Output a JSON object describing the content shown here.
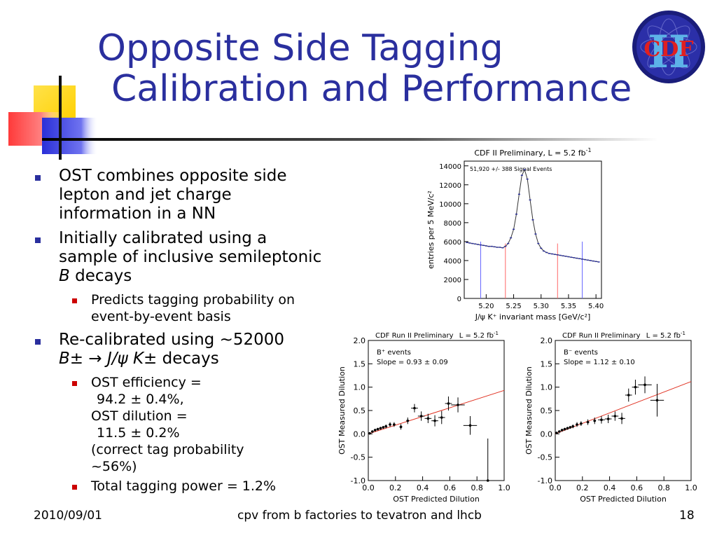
{
  "title": {
    "line1": "Opposite Side Tagging",
    "line2": "Calibration and Performance"
  },
  "logo": {
    "text": "CDF",
    "roman": "II"
  },
  "bullets": {
    "b1": "OST combines opposite side lepton and jet charge information in a NN",
    "b2_pre": "Initially calibrated using a sample of inclusive semileptonic ",
    "b2_B": "B",
    "b2_post": " decays",
    "b2_sub1": "Predicts tagging probability on event-by-event basis",
    "b3_pre": "Re-calibrated using ~52000",
    "b3_formula": "B± → J/ψ K±",
    "b3_post": " decays",
    "b3_sub1_l1": "OST efficiency =",
    "b3_sub1_l2": "94.2 ± 0.4%,",
    "b3_sub1_l3": "OST dilution =",
    "b3_sub1_l4": "11.5 ± 0.2%",
    "b3_sub1_l5": "(correct tag probability",
    "b3_sub1_l6": "~56%)",
    "b3_sub2": "Total tagging power = 1.2%"
  },
  "footer": {
    "date": "2010/09/01",
    "center": "cpv from b factories to tevatron and lhcb",
    "page": "18"
  },
  "chart_data": [
    {
      "type": "line",
      "title": "CDF II Preliminary, L = 5.2 fb",
      "title_sup": "-1",
      "annotation": "51,920 +/- 388 Signal Events",
      "xlabel": "J/ψ K⁺ invariant mass [GeV/c²]",
      "ylabel": "entries per 5 MeV/c²",
      "xlim": [
        5.16,
        5.41
      ],
      "ylim": [
        0,
        14500
      ],
      "xticks": [
        5.2,
        5.25,
        5.3,
        5.35,
        5.4
      ],
      "yticks": [
        0,
        2000,
        4000,
        6000,
        8000,
        10000,
        12000,
        14000
      ],
      "x": [
        5.165,
        5.17,
        5.175,
        5.18,
        5.185,
        5.19,
        5.195,
        5.2,
        5.205,
        5.21,
        5.215,
        5.22,
        5.225,
        5.23,
        5.235,
        5.24,
        5.245,
        5.25,
        5.255,
        5.26,
        5.265,
        5.27,
        5.275,
        5.28,
        5.285,
        5.29,
        5.295,
        5.3,
        5.305,
        5.31,
        5.315,
        5.32,
        5.325,
        5.33,
        5.335,
        5.34,
        5.345,
        5.35,
        5.355,
        5.36,
        5.365,
        5.37,
        5.375,
        5.38,
        5.385,
        5.39,
        5.395,
        5.4,
        5.405
      ],
      "y": [
        5900,
        5850,
        5800,
        5750,
        5700,
        5650,
        5600,
        5550,
        5500,
        5500,
        5450,
        5400,
        5400,
        5350,
        5500,
        5800,
        6400,
        7300,
        8900,
        11000,
        13000,
        13600,
        12600,
        10400,
        8300,
        6800,
        5800,
        5300,
        5000,
        4850,
        4750,
        4700,
        4650,
        4600,
        4550,
        4500,
        4450,
        4400,
        4350,
        4300,
        4250,
        4200,
        4150,
        4100,
        4050,
        4000,
        3950,
        3900,
        3850
      ],
      "vlines": [
        5.19,
        5.235,
        5.33,
        5.375
      ]
    },
    {
      "type": "scatter",
      "title_left": "CDF Run II Preliminary",
      "title_right": "L = 5.2 fb",
      "title_sup": "-1",
      "legend_l1": "B⁺ events",
      "legend_l2": "Slope = 0.93 ± 0.09",
      "xlabel": "OST Predicted Dilution",
      "ylabel": "OST Measured Dilution",
      "xlim": [
        0,
        1.0
      ],
      "ylim": [
        -1.0,
        2.0
      ],
      "xticks": [
        "0.0",
        "0.2",
        "0.4",
        "0.6",
        "0.8",
        "1.0"
      ],
      "yticks": [
        "-1.0",
        "-0.5",
        "0.0",
        "0.5",
        "1.0",
        "1.5",
        "2.0"
      ],
      "x": [
        0.01,
        0.03,
        0.05,
        0.07,
        0.09,
        0.11,
        0.13,
        0.16,
        0.19,
        0.24,
        0.29,
        0.34,
        0.39,
        0.44,
        0.49,
        0.54,
        0.59,
        0.66,
        0.75,
        0.88
      ],
      "y": [
        0.01,
        0.05,
        0.08,
        0.1,
        0.12,
        0.14,
        0.16,
        0.2,
        0.2,
        0.15,
        0.28,
        0.55,
        0.38,
        0.33,
        0.28,
        0.35,
        0.65,
        0.62,
        0.18,
        -1.0
      ],
      "yerr": [
        0.02,
        0.02,
        0.03,
        0.03,
        0.03,
        0.03,
        0.04,
        0.05,
        0.05,
        0.06,
        0.07,
        0.09,
        0.1,
        0.1,
        0.12,
        0.14,
        0.15,
        0.16,
        0.2,
        0.9
      ],
      "fit_line": [
        [
          0,
          0.0
        ],
        [
          1.0,
          0.93
        ]
      ]
    },
    {
      "type": "scatter",
      "title_left": "CDF Run II Preliminary",
      "title_right": "L = 5.2 fb",
      "title_sup": "-1",
      "legend_l1": "B⁻ events",
      "legend_l2": "Slope = 1.12 ± 0.10",
      "xlabel": "OST Predicted Dilution",
      "ylabel": "OST Measured Dilution",
      "xlim": [
        0,
        1.0
      ],
      "ylim": [
        -1.0,
        2.0
      ],
      "xticks": [
        "0.0",
        "0.2",
        "0.4",
        "0.6",
        "0.8",
        "1.0"
      ],
      "yticks": [
        "-1.0",
        "-0.5",
        "0.0",
        "0.5",
        "1.0",
        "1.5",
        "2.0"
      ],
      "x": [
        0.01,
        0.03,
        0.05,
        0.07,
        0.09,
        0.11,
        0.13,
        0.16,
        0.19,
        0.24,
        0.29,
        0.34,
        0.39,
        0.44,
        0.49,
        0.54,
        0.59,
        0.66,
        0.75
      ],
      "y": [
        0.02,
        0.05,
        0.08,
        0.1,
        0.12,
        0.14,
        0.16,
        0.2,
        0.22,
        0.25,
        0.28,
        0.3,
        0.32,
        0.38,
        0.33,
        0.83,
        1.0,
        1.05,
        0.72
      ],
      "yerr": [
        0.02,
        0.02,
        0.03,
        0.03,
        0.03,
        0.03,
        0.04,
        0.05,
        0.05,
        0.06,
        0.07,
        0.08,
        0.09,
        0.1,
        0.12,
        0.14,
        0.16,
        0.18,
        0.35
      ],
      "fit_line": [
        [
          0,
          0.0
        ],
        [
          1.0,
          1.12
        ]
      ]
    }
  ]
}
